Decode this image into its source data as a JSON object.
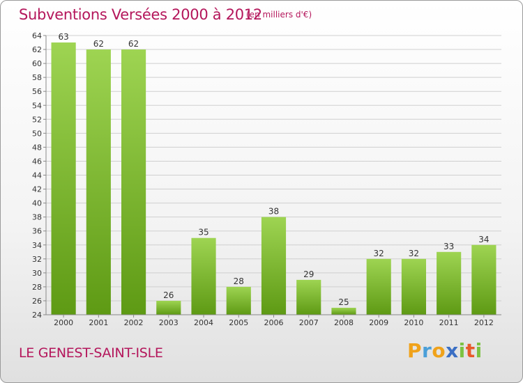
{
  "title": "Subventions Versées 2000 à 2012",
  "subtitle": "(en milliers d'€)",
  "commune": "LE GENEST-SAINT-ISLE",
  "brand": "Proxiti",
  "colors": {
    "title": "#b4165b",
    "bar_top": "#9ed452",
    "bar_bottom": "#5e9a14",
    "grid": "#cfcfcf"
  },
  "chart_data": {
    "type": "bar",
    "title": "Subventions Versées 2000 à 2012",
    "subtitle": "(en milliers d'€)",
    "categories": [
      "2000",
      "2001",
      "2002",
      "2003",
      "2004",
      "2005",
      "2006",
      "2007",
      "2008",
      "2009",
      "2010",
      "2011",
      "2012"
    ],
    "values": [
      63,
      62,
      62,
      26,
      35,
      28,
      38,
      29,
      25,
      32,
      32,
      33,
      34
    ],
    "ylim": [
      24,
      64
    ],
    "ytick_step": 2,
    "grid": true,
    "legend": "none"
  }
}
